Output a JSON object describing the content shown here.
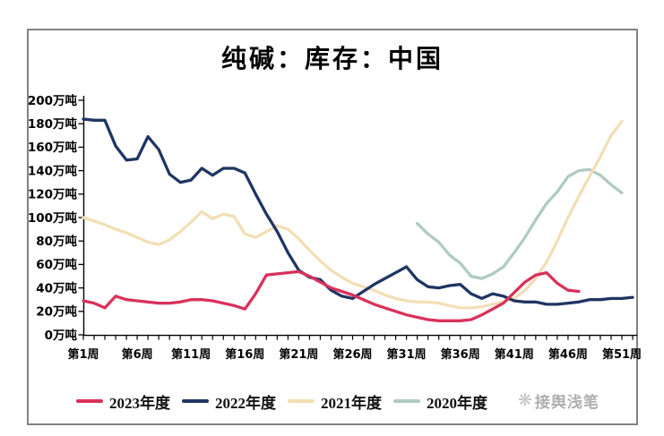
{
  "watermark": {
    "icon": "compass-rose-icon",
    "text": "接舆浅笔"
  },
  "chart_data": {
    "type": "line",
    "title": "纯碱：库存：中国",
    "xlabel": "",
    "ylabel": "",
    "y_unit": "万吨",
    "ylim": [
      0,
      200
    ],
    "y_ticks": [
      0,
      20,
      40,
      60,
      80,
      100,
      120,
      140,
      160,
      180,
      200
    ],
    "weeks_total": 52,
    "x_ticks": [
      {
        "week": 1,
        "label": "第1周"
      },
      {
        "week": 6,
        "label": "第6周"
      },
      {
        "week": 11,
        "label": "第11周"
      },
      {
        "week": 16,
        "label": "第16周"
      },
      {
        "week": 21,
        "label": "第21周"
      },
      {
        "week": 26,
        "label": "第26周"
      },
      {
        "week": 31,
        "label": "第31周"
      },
      {
        "week": 36,
        "label": "第36周"
      },
      {
        "week": 41,
        "label": "第41周"
      },
      {
        "week": 46,
        "label": "第46周"
      },
      {
        "week": 51,
        "label": "第51周"
      }
    ],
    "grid": false,
    "legend_position": "bottom",
    "axis_color": "#000000",
    "series": [
      {
        "name": "2023年度",
        "color": "#D8325B",
        "start_week": 1,
        "values": [
          29,
          27,
          23,
          33,
          30,
          29,
          28,
          27,
          27,
          28,
          30,
          30,
          29,
          27,
          25,
          22,
          35,
          51,
          52,
          53,
          54,
          50,
          45,
          40,
          37,
          34,
          30,
          26,
          23,
          20,
          17,
          15,
          13,
          12,
          12,
          12,
          13,
          17,
          22,
          27,
          36,
          45,
          51,
          53,
          44,
          38,
          37
        ]
      },
      {
        "name": "2022年度",
        "color": "#1F3563",
        "start_week": 1,
        "values": [
          184,
          183,
          183,
          161,
          149,
          150,
          169,
          158,
          137,
          130,
          132,
          142,
          136,
          142,
          142,
          138,
          120,
          103,
          88,
          70,
          55,
          49,
          47,
          38,
          33,
          31,
          37,
          43,
          48,
          53,
          58,
          47,
          41,
          40,
          42,
          43,
          35,
          31,
          35,
          33,
          29,
          28,
          28,
          26,
          26,
          27,
          28,
          30,
          30,
          31,
          31,
          32
        ]
      },
      {
        "name": "2021年度",
        "color": "#F2DFB5",
        "start_week": 1,
        "values": [
          100,
          97,
          94,
          90,
          87,
          83,
          79,
          77,
          81,
          88,
          96,
          105,
          99,
          103,
          101,
          86,
          83,
          88,
          93,
          90,
          82,
          72,
          63,
          55,
          49,
          44,
          41,
          38,
          34,
          31,
          29,
          28,
          28,
          27,
          25,
          23,
          23,
          24,
          26,
          28,
          31,
          38,
          48,
          62,
          80,
          100,
          118,
          135,
          152,
          170,
          182
        ]
      },
      {
        "name": "2020年度",
        "color": "#AFCBC1",
        "start_week": 32,
        "values": [
          95,
          86,
          79,
          68,
          61,
          50,
          48,
          52,
          58,
          70,
          83,
          98,
          112,
          122,
          135,
          140,
          141,
          136,
          128,
          121
        ]
      }
    ]
  }
}
